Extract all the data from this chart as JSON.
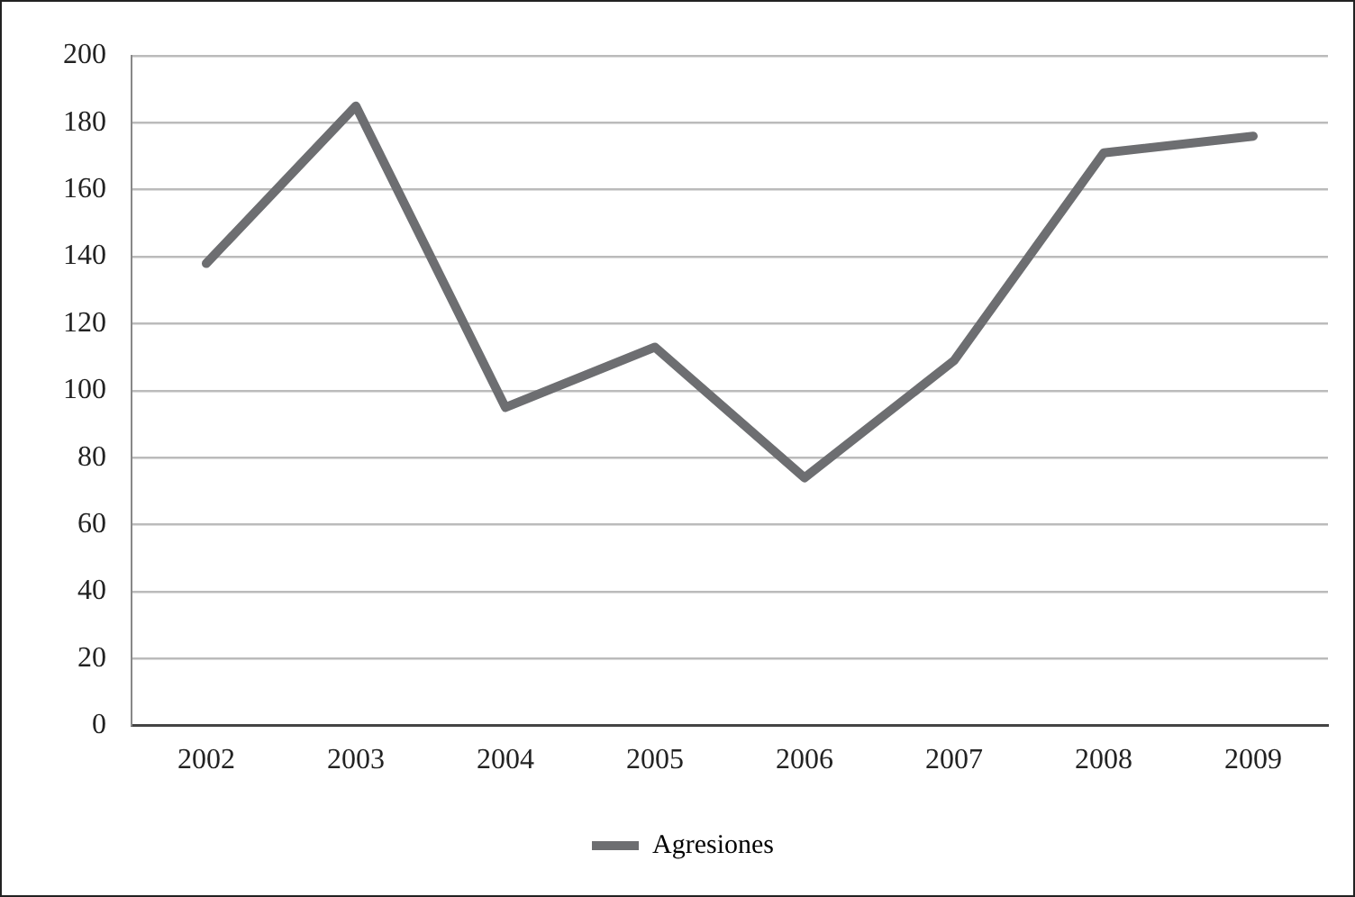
{
  "chart_data": {
    "type": "line",
    "categories": [
      "2002",
      "2003",
      "2004",
      "2005",
      "2006",
      "2007",
      "2008",
      "2009"
    ],
    "series": [
      {
        "name": "Agresiones",
        "color": "#6d6e71",
        "values": [
          138,
          185,
          95,
          113,
          74,
          109,
          171,
          176
        ]
      }
    ],
    "ylim": [
      0,
      200
    ],
    "yticks": [
      0,
      20,
      40,
      60,
      80,
      100,
      120,
      140,
      160,
      180,
      200
    ],
    "grid": "y",
    "legend": "bottom",
    "marker": "none",
    "line_style": "solid"
  }
}
